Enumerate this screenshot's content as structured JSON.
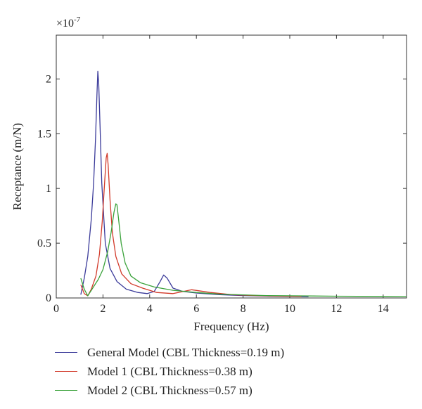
{
  "chart_data": {
    "type": "line",
    "title": "",
    "xlabel": "Frequency (Hz)",
    "ylabel": "Receptance (m/N)",
    "y_multiplier": "×10",
    "y_exponent": "-7",
    "xlim": [
      0,
      15
    ],
    "ylim": [
      0,
      2.4
    ],
    "x_ticks": [
      0,
      2,
      4,
      6,
      8,
      10,
      12,
      14
    ],
    "x_tick_labels": [
      "0",
      "2",
      "4",
      "6",
      "8",
      "10",
      "12",
      "14"
    ],
    "y_ticks": [
      0,
      0.5,
      1,
      1.5,
      2
    ],
    "y_tick_labels": [
      "0",
      "0.5",
      "1",
      "1.5",
      "2"
    ],
    "grid": false,
    "legend_position": "bottom",
    "series": [
      {
        "name": "General Model (CBL Thickness=0.19 m)",
        "color": "#3b3b9a",
        "x": [
          1.05,
          1.2,
          1.35,
          1.5,
          1.6,
          1.68,
          1.74,
          1.78,
          1.82,
          1.87,
          1.95,
          2.1,
          2.3,
          2.6,
          3.0,
          3.5,
          3.9,
          4.2,
          4.45,
          4.6,
          4.75,
          5.0,
          5.4,
          6.0,
          7.0,
          8.0,
          9.0,
          10.0,
          10.8
        ],
        "y": [
          0.03,
          0.18,
          0.38,
          0.72,
          1.05,
          1.45,
          1.85,
          2.07,
          1.95,
          1.6,
          1.05,
          0.5,
          0.27,
          0.15,
          0.08,
          0.05,
          0.04,
          0.06,
          0.15,
          0.21,
          0.18,
          0.09,
          0.06,
          0.045,
          0.03,
          0.022,
          0.017,
          0.014,
          0.012
        ]
      },
      {
        "name": "Model 1 (CBL Thickness=0.38 m)",
        "color": "#d23a2a",
        "x": [
          1.05,
          1.2,
          1.35,
          1.5,
          1.7,
          1.85,
          1.97,
          2.07,
          2.14,
          2.18,
          2.22,
          2.3,
          2.4,
          2.55,
          2.8,
          3.2,
          3.7,
          4.3,
          5.0,
          5.8,
          6.6,
          7.5,
          8.5,
          9.5,
          10.5
        ],
        "y": [
          0.12,
          0.04,
          0.02,
          0.08,
          0.2,
          0.4,
          0.7,
          1.05,
          1.28,
          1.32,
          1.22,
          0.9,
          0.6,
          0.38,
          0.22,
          0.13,
          0.09,
          0.05,
          0.04,
          0.075,
          0.05,
          0.03,
          0.022,
          0.017,
          0.014
        ]
      },
      {
        "name": "Model 2 (CBL Thickness=0.57 m)",
        "color": "#3aa23a",
        "x": [
          1.05,
          1.2,
          1.35,
          1.5,
          1.8,
          2.0,
          2.2,
          2.35,
          2.47,
          2.55,
          2.6,
          2.67,
          2.78,
          2.95,
          3.2,
          3.6,
          4.2,
          5.0,
          6.0,
          7.0,
          8.0,
          9.0,
          10.0,
          11.0,
          12.0,
          13.0,
          14.0,
          15.0
        ],
        "y": [
          0.18,
          0.08,
          0.02,
          0.07,
          0.17,
          0.26,
          0.42,
          0.6,
          0.78,
          0.86,
          0.85,
          0.72,
          0.5,
          0.32,
          0.2,
          0.14,
          0.1,
          0.07,
          0.05,
          0.035,
          0.028,
          0.022,
          0.02,
          0.018,
          0.016,
          0.015,
          0.014,
          0.013
        ]
      }
    ]
  }
}
